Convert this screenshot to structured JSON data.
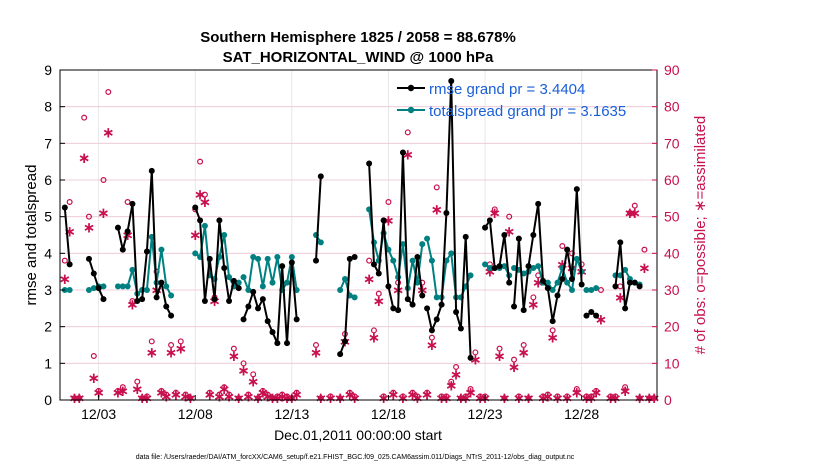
{
  "chart_data": {
    "type": "line",
    "title": "Southern Hemisphere 1825 / 2058 = 88.678%",
    "subtitle": "SAT_HORIZONTAL_WIND @ 1000 hPa",
    "xlabel": "Dec.01,2011 00:00:00 start",
    "ylabel": "rmse and totalspread",
    "y2label": "# of obs: o=possible; ∗=assimilated",
    "footnote": "data file: /Users/raeder/DAI/ATM_forcXX/CAM6_setup/f.e21.FHIST_BGC.f09_025.CAM6assim.011/Diags_NTrS_2011-12/obs_diag_output.nc",
    "xlim": [
      1.0,
      31.9
    ],
    "ylim": [
      0,
      9
    ],
    "y2lim": [
      0,
      90
    ],
    "x_ticks": [
      3,
      8,
      13,
      18,
      23,
      28
    ],
    "x_tick_labels": [
      "12/03",
      "12/08",
      "12/13",
      "12/18",
      "12/23",
      "12/28"
    ],
    "y_ticks": [
      0,
      1,
      2,
      3,
      4,
      5,
      6,
      7,
      8,
      9
    ],
    "y2_ticks": [
      0,
      10,
      20,
      30,
      40,
      50,
      60,
      70,
      80,
      90
    ],
    "grid": true,
    "legend_position": "top-right",
    "series": [
      {
        "name": "rmse grand pr = 3.4404",
        "color": "#000000",
        "marker": "circle",
        "segments": [
          {
            "x": [
              1.25,
              1.5
            ],
            "y": [
              5.25,
              3.7
            ]
          },
          {
            "x": [
              2.5,
              2.75,
              3.0,
              3.25
            ],
            "y": [
              3.85,
              3.45,
              3.05,
              2.75
            ]
          },
          {
            "x": [
              4.0,
              4.25,
              4.5,
              4.75,
              5.0,
              5.25,
              5.5,
              5.75,
              6.0,
              6.25,
              6.5,
              6.75
            ],
            "y": [
              4.7,
              4.1,
              4.6,
              5.35,
              2.7,
              2.75,
              4.05,
              6.25,
              2.8,
              3.2,
              2.55,
              2.3
            ]
          },
          {
            "x": [
              8.0,
              8.25,
              8.5,
              8.75,
              9.0,
              9.25,
              9.5,
              9.75,
              10.0,
              10.25
            ],
            "y": [
              5.25,
              4.9,
              2.7,
              3.85,
              2.75,
              4.9,
              3.6,
              2.7,
              3.25,
              3.05
            ]
          },
          {
            "x": [
              10.5,
              10.75,
              11.0,
              11.25,
              11.5,
              11.75,
              12.0,
              12.25,
              12.5,
              12.75,
              13.0,
              13.25
            ],
            "y": [
              2.2,
              2.55,
              2.95,
              2.5,
              2.75,
              2.15,
              1.85,
              1.55,
              3.65,
              1.55,
              3.75,
              2.2
            ]
          },
          {
            "x": [
              14.25,
              14.5
            ],
            "y": [
              3.8,
              6.1
            ]
          },
          {
            "x": [
              15.5,
              15.75,
              16.0,
              16.25
            ],
            "y": [
              1.25,
              1.6,
              3.85,
              3.9
            ]
          },
          {
            "x": [
              17.0,
              17.25,
              17.5,
              17.75,
              18.0,
              18.25,
              18.5,
              18.75,
              19.0,
              19.25,
              19.5,
              19.75
            ],
            "y": [
              6.45,
              3.7,
              3.45,
              4.9,
              3.1,
              2.5,
              2.45,
              6.75,
              2.75,
              2.6,
              3.9,
              2.85
            ]
          },
          {
            "x": [
              20.0,
              20.25,
              20.5,
              20.75,
              21.0,
              21.25,
              21.5,
              21.75,
              22.0,
              22.25
            ],
            "y": [
              2.5,
              1.9,
              2.2,
              2.6,
              5.1,
              8.7,
              2.4,
              1.95,
              4.45,
              1.15
            ]
          },
          {
            "x": [
              23.0,
              23.25,
              23.5,
              23.75,
              24.0,
              24.25
            ],
            "y": [
              4.7,
              4.9,
              3.6,
              3.65,
              4.5,
              3.2
            ]
          },
          {
            "x": [
              24.5,
              24.75,
              25.0,
              25.25,
              25.5,
              25.75,
              26.0,
              26.25,
              26.5,
              26.75,
              27.0,
              27.25,
              27.5,
              27.75,
              28.0
            ],
            "y": [
              2.55,
              4.4,
              2.45,
              3.65,
              4.5,
              5.35,
              3.25,
              3.05,
              2.15,
              2.85,
              3.3,
              4.1,
              3.3,
              5.75,
              3.15
            ]
          },
          {
            "x": [
              28.25,
              28.5,
              28.75
            ],
            "y": [
              2.3,
              2.4,
              2.3
            ]
          },
          {
            "x": [
              29.75,
              30.0,
              30.25,
              30.5
            ],
            "y": [
              3.1,
              4.3,
              2.5,
              3.2
            ]
          },
          {
            "x": [
              30.75,
              31.0
            ],
            "y": [
              3.2,
              3.1
            ]
          }
        ]
      },
      {
        "name": "totalspread grand pr = 3.1635",
        "color": "#008080",
        "marker": "circle",
        "segments": [
          {
            "x": [
              1.25,
              1.5
            ],
            "y": [
              3.0,
              3.0
            ]
          },
          {
            "x": [
              2.5,
              2.75,
              3.0,
              3.25
            ],
            "y": [
              3.0,
              3.05,
              3.1,
              3.1
            ]
          },
          {
            "x": [
              4.0,
              4.25,
              4.5,
              4.75,
              5.0,
              5.25,
              5.5,
              5.75,
              6.0,
              6.25,
              6.5,
              6.75
            ],
            "y": [
              3.1,
              3.1,
              3.1,
              3.55,
              2.9,
              3.0,
              3.0,
              4.45,
              3.2,
              4.1,
              3.1,
              2.85
            ]
          },
          {
            "x": [
              8.0,
              8.25,
              8.5,
              8.75,
              9.0,
              9.25,
              9.5,
              9.75,
              10.0,
              10.25
            ],
            "y": [
              4.0,
              3.9,
              4.75,
              3.4,
              3.3,
              3.9,
              4.5,
              3.35,
              3.1,
              3.2
            ]
          },
          {
            "x": [
              10.5,
              10.75,
              11.0,
              11.25,
              11.5,
              11.75,
              12.0,
              12.25,
              12.5,
              12.75,
              13.0,
              13.25
            ],
            "y": [
              3.35,
              3.0,
              3.9,
              3.85,
              3.1,
              3.85,
              3.2,
              3.9,
              3.0,
              3.2,
              3.9,
              3.0
            ]
          },
          {
            "x": [
              14.25,
              14.5
            ],
            "y": [
              4.5,
              4.3
            ]
          },
          {
            "x": [
              15.5,
              15.75,
              16.0,
              16.25
            ],
            "y": [
              3.0,
              3.3,
              2.85,
              2.8
            ]
          },
          {
            "x": [
              17.0,
              17.25,
              17.5,
              17.75,
              18.0,
              18.25,
              18.5,
              18.75,
              19.0,
              19.25,
              19.5,
              19.75
            ],
            "y": [
              5.2,
              4.3,
              3.8,
              4.55,
              4.1,
              3.8,
              3.35,
              4.25,
              3.05,
              3.8,
              3.2,
              4.25
            ]
          },
          {
            "x": [
              20.0,
              20.25,
              20.5,
              20.75,
              21.0,
              21.25,
              21.5,
              21.75,
              22.0,
              22.25
            ],
            "y": [
              4.4,
              3.8,
              2.8,
              2.8,
              3.8,
              4.0,
              2.8,
              2.8,
              3.1,
              3.4
            ]
          },
          {
            "x": [
              23.0,
              23.25,
              23.5,
              23.75,
              24.0,
              24.25
            ],
            "y": [
              3.7,
              3.6,
              3.6,
              3.6,
              3.65,
              3.4
            ]
          },
          {
            "x": [
              24.5,
              24.75,
              25.0,
              25.25,
              25.5,
              25.75,
              26.0,
              26.25,
              26.5,
              26.75,
              27.0,
              27.25,
              27.5,
              27.75,
              28.0
            ],
            "y": [
              3.6,
              3.55,
              3.45,
              3.5,
              3.6,
              3.65,
              3.2,
              3.2,
              3.0,
              3.2,
              3.6,
              3.2,
              3.0,
              3.85,
              3.5
            ]
          },
          {
            "x": [
              28.25,
              28.5,
              28.75
            ],
            "y": [
              3.0,
              3.0,
              3.05
            ]
          },
          {
            "x": [
              29.75,
              30.0,
              30.25,
              30.5
            ],
            "y": [
              3.4,
              3.4,
              3.55,
              3.3
            ]
          },
          {
            "x": [
              30.75,
              31.0
            ],
            "y": [
              3.2,
              3.15
            ]
          }
        ]
      }
    ],
    "obs_possible": {
      "name": "possible",
      "color": "#c8104e",
      "marker": "o",
      "x": [
        1.25,
        1.5,
        1.75,
        2.0,
        2.25,
        2.5,
        2.75,
        3.0,
        3.25,
        3.5,
        4.0,
        4.25,
        4.5,
        4.75,
        5.0,
        5.25,
        5.5,
        5.75,
        6.0,
        6.25,
        6.5,
        6.75,
        7.0,
        7.25,
        7.5,
        7.75,
        8.0,
        8.25,
        8.5,
        8.75,
        9.0,
        9.25,
        9.5,
        9.75,
        10.0,
        10.25,
        10.5,
        10.75,
        11.0,
        11.25,
        11.5,
        11.75,
        12.0,
        12.25,
        12.5,
        12.75,
        13.0,
        13.25,
        14.25,
        14.5,
        15.0,
        15.5,
        15.75,
        16.0,
        16.25,
        17.0,
        17.25,
        17.5,
        17.75,
        18.0,
        18.25,
        18.5,
        18.75,
        19.0,
        19.25,
        19.5,
        19.75,
        20.0,
        20.25,
        20.5,
        20.75,
        21.0,
        21.25,
        21.5,
        21.75,
        22.0,
        22.25,
        22.5,
        22.75,
        23.0,
        23.25,
        23.5,
        23.75,
        24.0,
        24.25,
        24.5,
        24.75,
        25.0,
        25.25,
        25.5,
        25.75,
        26.0,
        26.25,
        26.5,
        26.75,
        27.0,
        27.25,
        27.5,
        27.75,
        28.0,
        28.25,
        28.5,
        28.75,
        29.0,
        29.5,
        29.75,
        30.0,
        30.25,
        30.5,
        30.75,
        31.0,
        31.25,
        31.5,
        31.75
      ],
      "y": [
        38,
        54,
        0.5,
        0.5,
        77,
        50,
        12,
        2.5,
        60,
        84,
        2.5,
        3.5,
        54,
        27,
        5,
        0.5,
        1,
        16,
        35,
        2.5,
        1.5,
        15,
        2,
        16,
        1.5,
        0.5,
        52,
        65,
        56,
        2,
        28,
        1.5,
        3.5,
        1.5,
        14,
        0.5,
        10,
        1.5,
        7,
        0.5,
        2.5,
        1.5,
        0.5,
        1,
        1.5,
        1,
        0.5,
        2,
        15,
        0.5,
        1,
        0.5,
        18,
        2,
        1,
        38,
        19,
        29,
        1,
        54,
        2,
        32,
        1,
        73,
        2,
        1,
        32,
        2,
        17,
        58,
        1,
        1,
        5,
        9,
        0.5,
        1,
        3,
        13,
        1,
        1,
        37,
        52,
        14,
        0.5,
        50,
        11,
        1,
        15,
        0.5,
        28,
        34,
        1,
        1.5,
        19,
        1,
        42,
        1,
        40,
        3,
        37,
        1,
        1,
        2.5,
        30,
        1,
        1,
        31,
        3.5,
        51,
        53,
        0.5,
        41,
        0.5,
        0.5
      ],
      "y2": [
        12.5
      ]
    },
    "obs_assimilated": {
      "name": "assimilated",
      "color": "#c8104e",
      "marker": "*",
      "x": [
        1.25,
        1.5,
        1.75,
        2.0,
        2.25,
        2.5,
        2.75,
        3.0,
        3.25,
        3.5,
        4.0,
        4.25,
        4.5,
        4.75,
        5.0,
        5.25,
        5.5,
        5.75,
        6.0,
        6.25,
        6.5,
        6.75,
        7.0,
        7.25,
        7.5,
        7.75,
        8.0,
        8.25,
        8.5,
        8.75,
        9.0,
        9.25,
        9.5,
        9.75,
        10.0,
        10.25,
        10.5,
        10.75,
        11.0,
        11.25,
        11.5,
        11.75,
        12.0,
        12.25,
        12.5,
        12.75,
        13.0,
        13.25,
        14.25,
        14.5,
        15.0,
        15.5,
        15.75,
        16.0,
        16.25,
        17.0,
        17.25,
        17.5,
        17.75,
        18.0,
        18.25,
        18.5,
        18.75,
        19.0,
        19.25,
        19.5,
        19.75,
        20.0,
        20.25,
        20.5,
        20.75,
        21.0,
        21.25,
        21.5,
        21.75,
        22.0,
        22.25,
        22.5,
        22.75,
        23.0,
        23.25,
        23.5,
        23.75,
        24.0,
        24.25,
        24.5,
        24.75,
        25.0,
        25.25,
        25.5,
        25.75,
        26.0,
        26.25,
        26.5,
        26.75,
        27.0,
        27.25,
        27.5,
        27.75,
        28.0,
        28.25,
        28.5,
        28.75,
        29.0,
        29.5,
        29.75,
        30.0,
        30.25,
        30.5,
        30.75,
        31.0,
        31.25,
        31.5,
        31.75
      ],
      "y": [
        33,
        46,
        0.5,
        0.5,
        66,
        47,
        6,
        2,
        51,
        73,
        2,
        2.5,
        45,
        26,
        3,
        0.5,
        0.5,
        13,
        30,
        2,
        1,
        13,
        1.5,
        14,
        1,
        0.5,
        45,
        56,
        54,
        1.5,
        27,
        1,
        3,
        1,
        12,
        0.5,
        8,
        1,
        5,
        0.5,
        2,
        1,
        0.5,
        0.5,
        1,
        0.5,
        0.5,
        1.5,
        13,
        0.5,
        0.5,
        0.5,
        16,
        1.5,
        0.5,
        33,
        17,
        27,
        0.5,
        49,
        1.5,
        30,
        0.5,
        67,
        1.5,
        0.5,
        30,
        1.5,
        15,
        52,
        0.5,
        0.5,
        4,
        7,
        0.5,
        0.5,
        2,
        11,
        0.5,
        0.5,
        35,
        51,
        12,
        0.5,
        46,
        9,
        0.5,
        13,
        0.5,
        26,
        32,
        0.5,
        1,
        17,
        0.5,
        37,
        0.5,
        36,
        2,
        35,
        0.5,
        0.5,
        2,
        22,
        0.5,
        0.5,
        28,
        2.5,
        51,
        51,
        0.5,
        36,
        0.5,
        0.5
      ]
    }
  }
}
